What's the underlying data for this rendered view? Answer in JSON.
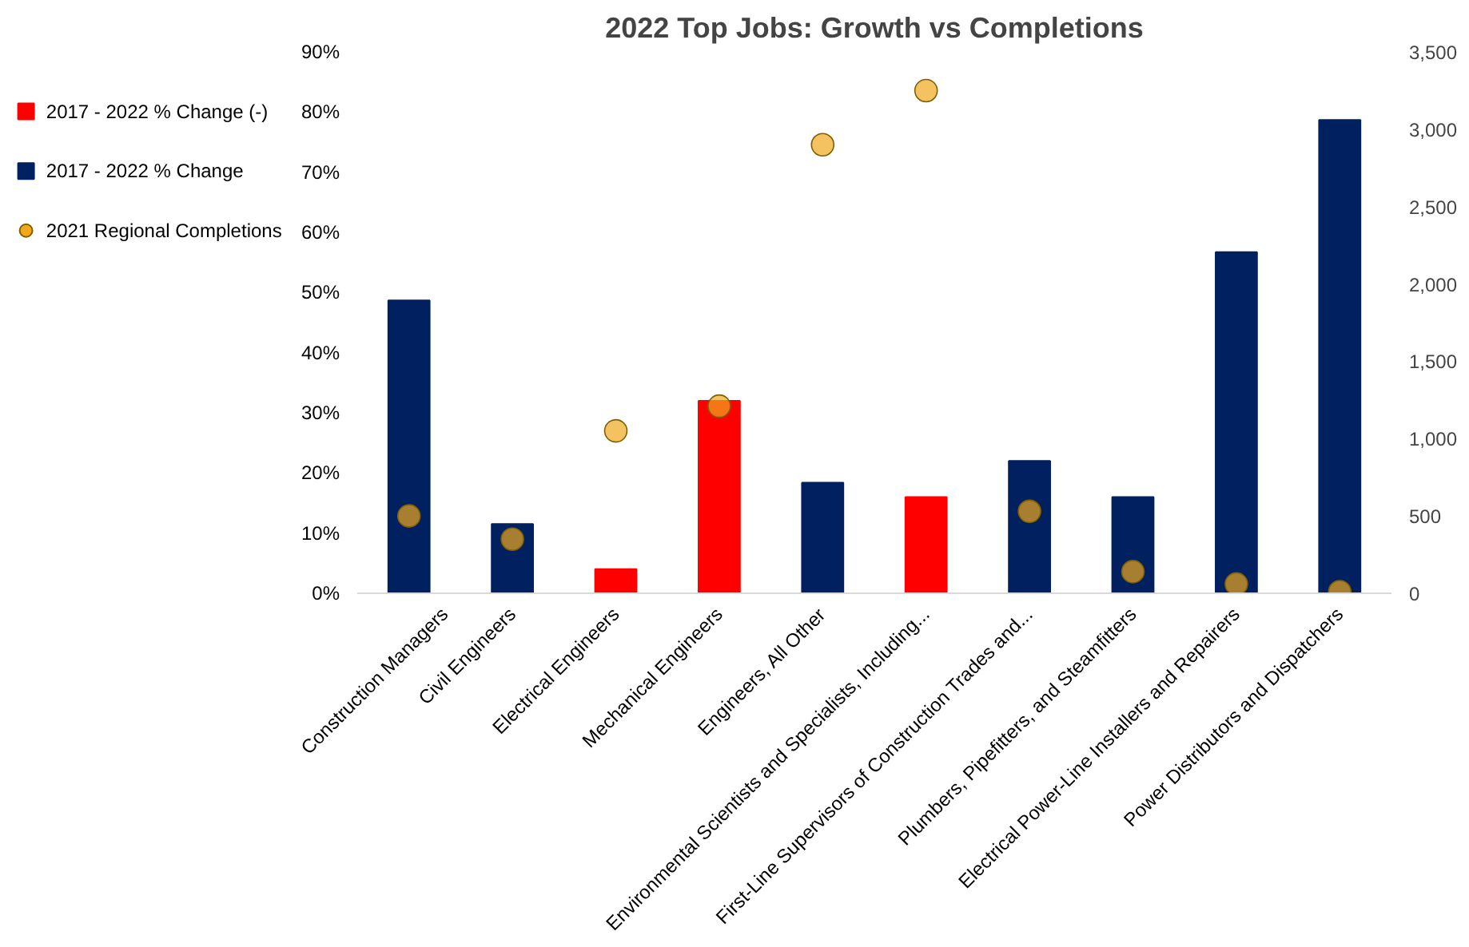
{
  "chart_data": {
    "type": "bar",
    "title": "2022 Top Jobs: Growth vs Completions",
    "categories": [
      "Construction Managers",
      "Civil Engineers",
      "Electrical Engineers",
      "Mechanical Engineers",
      "Engineers, All Other",
      "Environmental Scientists and Specialists, Including...",
      "First-Line Supervisors of Construction Trades and...",
      "Plumbers, Pipefitters, and Steamfitters",
      "Electrical Power-Line Installers and Repairers",
      "Power Distributors and Dispatchers"
    ],
    "series": [
      {
        "name": "2017 - 2022 % Change (-)",
        "color": "#ff0000",
        "values": [
          null,
          null,
          4,
          32,
          null,
          16,
          null,
          null,
          null,
          null
        ]
      },
      {
        "name": "2017 - 2022 % Change",
        "color": "#002060",
        "values": [
          48.7,
          11.5,
          null,
          null,
          18.4,
          null,
          22,
          16,
          56.7,
          78.7
        ]
      },
      {
        "name": "2021 Regional Completions",
        "type": "scatter",
        "axis": "y2",
        "marker": "circle",
        "color": "#f0a81c",
        "values": [
          500,
          350,
          1050,
          1210,
          2900,
          3250,
          530,
          140,
          60,
          10
        ]
      }
    ],
    "ylim": [
      0,
      90
    ],
    "yticks": [
      {
        "value": 0,
        "label": "0%"
      },
      {
        "value": 10,
        "label": "10%"
      },
      {
        "value": 20,
        "label": "20%"
      },
      {
        "value": 30,
        "label": "30%"
      },
      {
        "value": 40,
        "label": "40%"
      },
      {
        "value": 50,
        "label": "50%"
      },
      {
        "value": 60,
        "label": "60%"
      },
      {
        "value": 70,
        "label": "70%"
      },
      {
        "value": 80,
        "label": "80%"
      },
      {
        "value": 90,
        "label": "90%"
      }
    ],
    "y2lim": [
      0,
      3500
    ],
    "y2ticks": [
      0,
      {
        "value": 500,
        "label": "500"
      },
      {
        "value": 1000,
        "label": "1,000"
      },
      {
        "value": 1500,
        "label": "1,500"
      },
      {
        "value": 2000,
        "label": "2,000"
      },
      {
        "value": 2500,
        "label": "2,500"
      },
      {
        "value": 3000,
        "label": "3,000"
      },
      {
        "value": 3500,
        "label": "3,500"
      }
    ],
    "grid": false,
    "legend": "left"
  }
}
